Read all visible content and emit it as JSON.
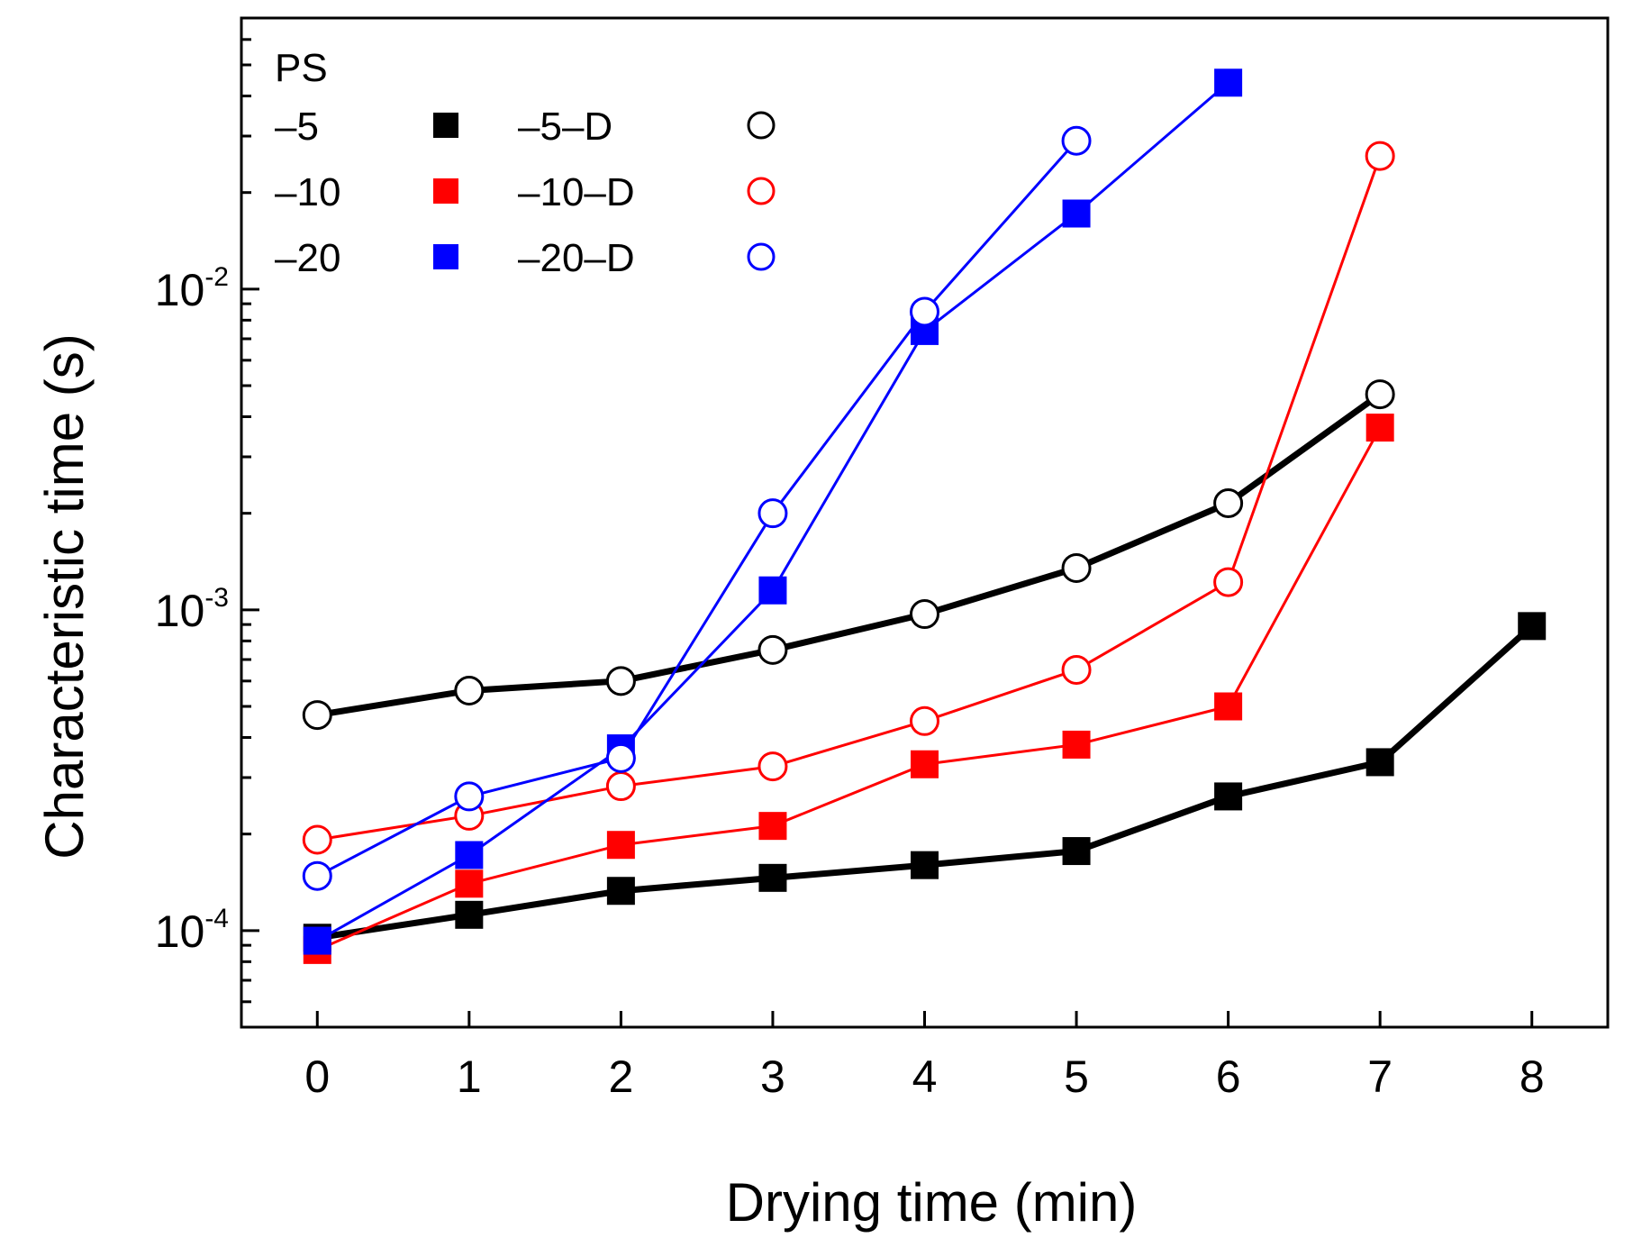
{
  "chart_data": {
    "type": "line",
    "xlabel": "Drying time (min)",
    "ylabel": "Characteristic time (s)",
    "xlim": [
      -0.5,
      8.5
    ],
    "ylim": [
      5e-05,
      0.07
    ],
    "yscale": "log",
    "xticks": [
      0,
      1,
      2,
      3,
      4,
      5,
      6,
      7,
      8
    ],
    "xtick_labels": [
      "0",
      "1",
      "2",
      "3",
      "4",
      "5",
      "6",
      "7",
      "8"
    ],
    "yticks_major": [
      {
        "value": 0.0001,
        "base": "10",
        "exp": "-4"
      },
      {
        "value": 0.001,
        "base": "10",
        "exp": "-3"
      },
      {
        "value": 0.01,
        "base": "10",
        "exp": "-2"
      }
    ],
    "legend": {
      "title": "PS",
      "position": "top-left"
    },
    "grid": false,
    "series": [
      {
        "name": "–5",
        "color": "#000000",
        "marker": "square",
        "filled": true,
        "line_width": 7,
        "x": [
          0,
          1,
          2,
          3,
          4,
          5,
          6,
          7,
          8
        ],
        "y": [
          9.5e-05,
          0.000112,
          0.000133,
          0.000146,
          0.00016,
          0.000177,
          0.000262,
          0.000335,
          0.00089
        ]
      },
      {
        "name": "–10",
        "color": "#ff0000",
        "marker": "square",
        "filled": true,
        "line_width": 3,
        "x": [
          0,
          1,
          2,
          3,
          4,
          5,
          6,
          7
        ],
        "y": [
          8.7e-05,
          0.00014,
          0.000185,
          0.000212,
          0.00033,
          0.00038,
          0.0005,
          0.0037
        ]
      },
      {
        "name": "–20",
        "color": "#0000ff",
        "marker": "square",
        "filled": true,
        "line_width": 3,
        "x": [
          0,
          1,
          2,
          3,
          4,
          5,
          6
        ],
        "y": [
          9.3e-05,
          0.000172,
          0.00037,
          0.00115,
          0.0074,
          0.0172,
          0.044
        ]
      },
      {
        "name": "–5–D",
        "color": "#000000",
        "marker": "circle",
        "filled": false,
        "line_width": 7,
        "x": [
          0,
          1,
          2,
          3,
          4,
          5,
          6,
          7
        ],
        "y": [
          0.00047,
          0.00056,
          0.0006,
          0.00075,
          0.00097,
          0.00135,
          0.00215,
          0.0047
        ]
      },
      {
        "name": "–10–D",
        "color": "#ff0000",
        "marker": "circle",
        "filled": false,
        "line_width": 3,
        "x": [
          0,
          1,
          2,
          3,
          4,
          5,
          6,
          7
        ],
        "y": [
          0.000192,
          0.000228,
          0.000282,
          0.000325,
          0.00045,
          0.00065,
          0.00122,
          0.026
        ]
      },
      {
        "name": "–20–D",
        "color": "#0000ff",
        "marker": "circle",
        "filled": false,
        "line_width": 3,
        "x": [
          0,
          1,
          2,
          3,
          4,
          5
        ],
        "y": [
          0.000148,
          0.000262,
          0.000345,
          0.002,
          0.0085,
          0.029
        ]
      }
    ]
  }
}
